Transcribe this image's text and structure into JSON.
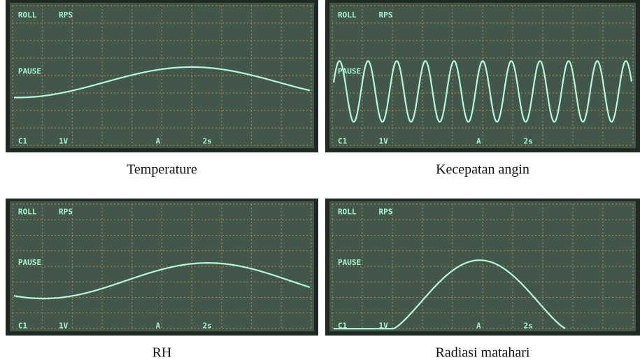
{
  "panels": [
    {
      "screen": {
        "mode": "ROLL",
        "rate": "RPS",
        "status": "PAUSE",
        "channel": "C1",
        "volts": "1V",
        "trigger": "A",
        "time": "2s"
      },
      "caption": "Temperature"
    },
    {
      "screen": {
        "mode": "ROLL",
        "rate": "RPS",
        "status": "PAUSE",
        "channel": "C1",
        "volts": "1V",
        "trigger": "A",
        "time": "2s"
      },
      "caption": "Kecepatan angin"
    },
    {
      "screen": {
        "mode": "ROLL",
        "rate": "RPS",
        "status": "PAUSE",
        "channel": "C1",
        "volts": "1V",
        "trigger": "A",
        "time": "2s"
      },
      "caption": "RH"
    },
    {
      "screen": {
        "mode": "ROLL",
        "rate": "RPS",
        "status": "PAUSE",
        "channel": "C1",
        "volts": "1V",
        "trigger": "A",
        "time": "2s"
      },
      "caption": "Radiasi matahari"
    }
  ]
}
